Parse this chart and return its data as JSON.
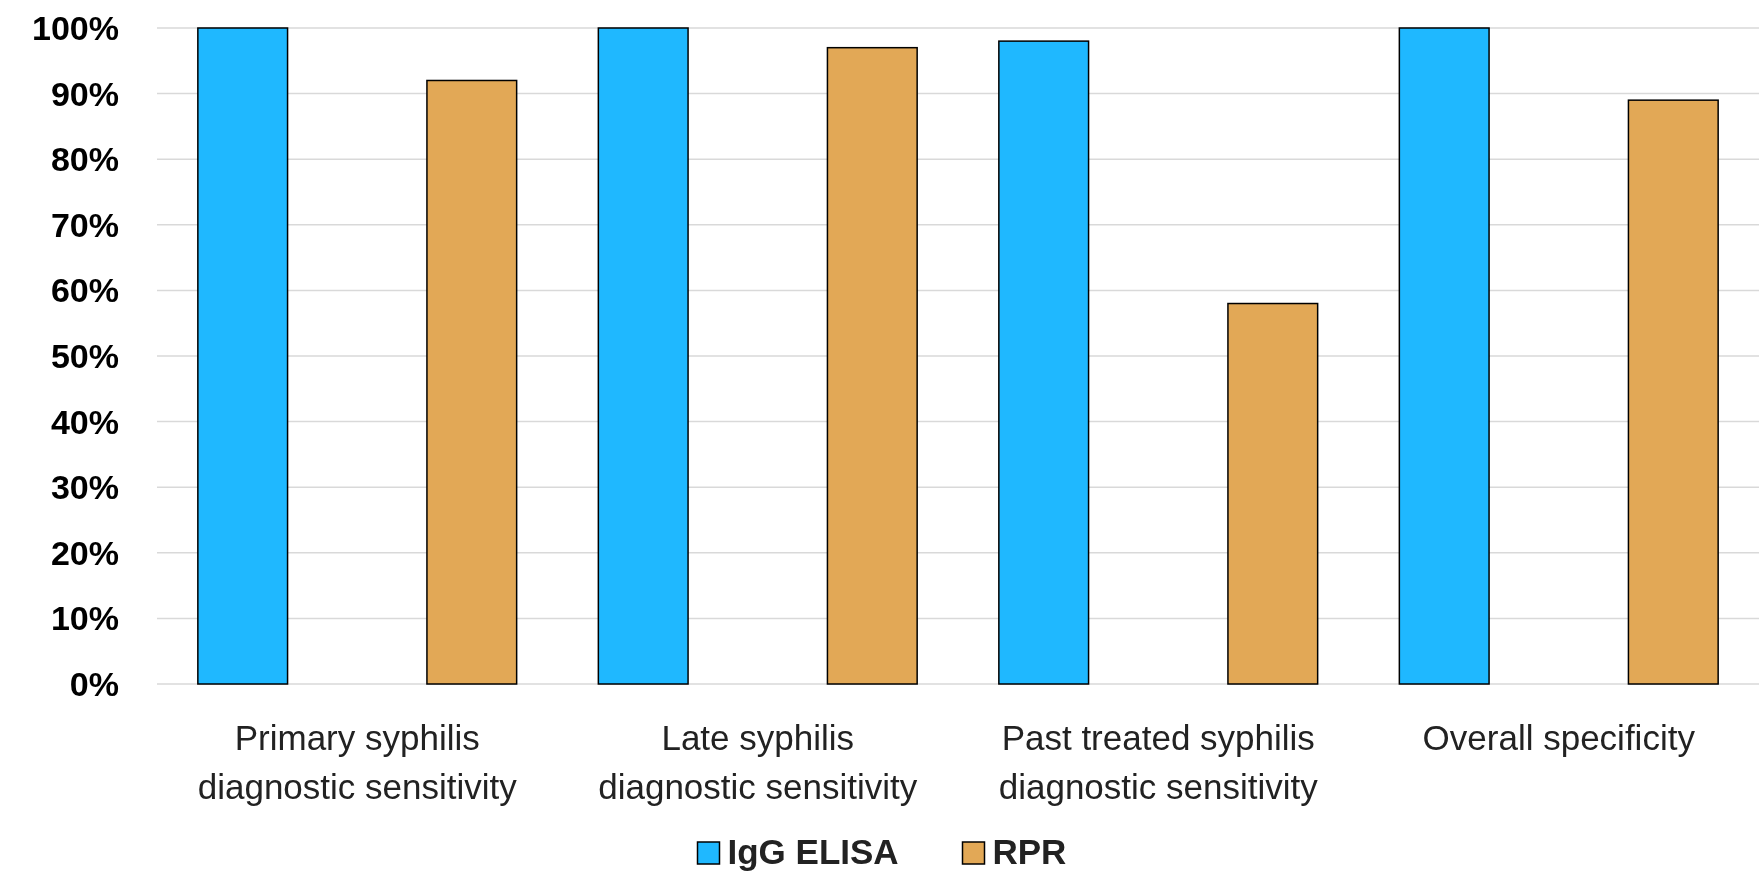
{
  "chart_data": {
    "type": "bar",
    "categories": [
      "Primary syphilis diagnostic sensitivity",
      "Late syphilis diagnostic sensitivity",
      "Past treated syphilis diagnostic sensitivity",
      "Overall specificity"
    ],
    "series": [
      {
        "name": "IgG ELISA",
        "color": "#1fb8ff",
        "values": [
          100,
          100,
          98,
          100
        ]
      },
      {
        "name": "RPR",
        "color": "#e2a856",
        "values": [
          92,
          97,
          58,
          89
        ]
      }
    ],
    "ylim": [
      0,
      100
    ],
    "yticks": [
      {
        "value": 0,
        "label": "0%"
      },
      {
        "value": 10,
        "label": "10%"
      },
      {
        "value": 20,
        "label": "20%"
      },
      {
        "value": 30,
        "label": "30%"
      },
      {
        "value": 40,
        "label": "40%"
      },
      {
        "value": 50,
        "label": "50%"
      },
      {
        "value": 60,
        "label": "60%"
      },
      {
        "value": 70,
        "label": "70%"
      },
      {
        "value": 80,
        "label": "80%"
      },
      {
        "value": 90,
        "label": "90%"
      },
      {
        "value": 100,
        "label": "100%"
      }
    ],
    "grid": "y",
    "legend": "bottom"
  }
}
